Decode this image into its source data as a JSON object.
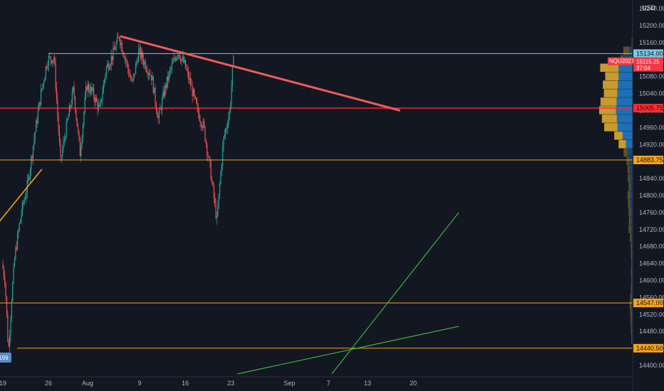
{
  "chart_data": {
    "type": "candlestick",
    "symbol_tag": "NQU2021",
    "currency": "USD",
    "countdown": "37:04",
    "y_axis": {
      "ticks": [
        14400,
        14440,
        14480,
        14520,
        14560,
        14600,
        14640,
        14680,
        14720,
        14760,
        14800,
        14840,
        14880,
        14920,
        14960,
        15000,
        15040,
        15080,
        15120,
        15160,
        15200,
        15240
      ],
      "ylim": [
        14386,
        15252
      ]
    },
    "x_axis": {
      "ticks": [
        {
          "label": "19",
          "day": 0
        },
        {
          "label": "26",
          "day": 7
        },
        {
          "label": "Aug",
          "day": 13
        },
        {
          "label": "9",
          "day": 21
        },
        {
          "label": "16",
          "day": 28
        },
        {
          "label": "23",
          "day": 35
        },
        {
          "label": "Sep",
          "day": 44
        },
        {
          "label": "7",
          "day": 50
        },
        {
          "label": "13",
          "day": 56
        },
        {
          "label": "20",
          "day": 63
        }
      ]
    },
    "price_path": [
      [
        0,
        14640
      ],
      [
        0.5,
        14600
      ],
      [
        1,
        14430
      ],
      [
        1.5,
        14560
      ],
      [
        2,
        14660
      ],
      [
        3,
        14760
      ],
      [
        4,
        14830
      ],
      [
        5,
        14940
      ],
      [
        6,
        15040
      ],
      [
        7,
        15120
      ],
      [
        8,
        15125
      ],
      [
        9,
        14880
      ],
      [
        10,
        14970
      ],
      [
        11,
        15050
      ],
      [
        12,
        14900
      ],
      [
        13,
        15060
      ],
      [
        14,
        15040
      ],
      [
        15,
        15000
      ],
      [
        16,
        15100
      ],
      [
        17,
        15130
      ],
      [
        18,
        15175
      ],
      [
        19,
        15120
      ],
      [
        20,
        15060
      ],
      [
        21,
        15140
      ],
      [
        22,
        15110
      ],
      [
        23,
        15080
      ],
      [
        24,
        14980
      ],
      [
        25,
        15050
      ],
      [
        26,
        15100
      ],
      [
        27,
        15140
      ],
      [
        28,
        15110
      ],
      [
        29,
        15060
      ],
      [
        30,
        15000
      ],
      [
        31,
        14960
      ],
      [
        32,
        14860
      ],
      [
        33,
        14740
      ],
      [
        34,
        14930
      ],
      [
        35,
        15000
      ],
      [
        35.5,
        15115.25
      ]
    ],
    "horizontal_levels": [
      {
        "label": "15134.00",
        "value": 15134.0,
        "color": "#7ec8e3"
      },
      {
        "label": "15005.75",
        "value": 15005.75,
        "color": "#ff2d2d"
      },
      {
        "label": "14883.75",
        "value": 14883.75,
        "color": "#f7a21b"
      },
      {
        "label": "14547.00",
        "value": 14547.0,
        "color": "#f7a21b"
      },
      {
        "label": "14440.50",
        "value": 14440.5,
        "color": "#f7a21b"
      }
    ],
    "last_price": {
      "label": "15115.25",
      "value": 15115.25,
      "color": "#f23645"
    },
    "trend_lines": [
      {
        "name": "resistance",
        "color": "#f05a5a",
        "from": [
          18,
          15175
        ],
        "to": [
          61,
          15000
        ]
      },
      {
        "name": "support-short",
        "color": "#f7a21b",
        "from": [
          -1,
          14730
        ],
        "to": [
          6,
          14862
        ]
      },
      {
        "name": "support-long-steep",
        "color": "#3fcf3f",
        "from": [
          50.5,
          14380
        ],
        "to": [
          70,
          14760
        ]
      },
      {
        "name": "support-long-shallow",
        "color": "#3fcf3f",
        "from": [
          36,
          14380
        ],
        "to": [
          70,
          14492
        ]
      }
    ],
    "low_marker": {
      "label": "199",
      "color": "#5b8ac9"
    },
    "volume_profile": [
      {
        "price": 15160,
        "up": 2,
        "down": 1
      },
      {
        "price": 15140,
        "up": 18,
        "down": 10
      },
      {
        "price": 15120,
        "up": 6,
        "down": 30
      },
      {
        "price": 15100,
        "up": 55,
        "down": 42
      },
      {
        "price": 15080,
        "up": 40,
        "down": 42
      },
      {
        "price": 15060,
        "up": 45,
        "down": 44
      },
      {
        "price": 15040,
        "up": 40,
        "down": 46
      },
      {
        "price": 15020,
        "up": 48,
        "down": 48
      },
      {
        "price": 15000,
        "up": 50,
        "down": 50
      },
      {
        "price": 14980,
        "up": 45,
        "down": 47
      },
      {
        "price": 14960,
        "up": 40,
        "down": 45
      },
      {
        "price": 14940,
        "up": 25,
        "down": 30
      },
      {
        "price": 14920,
        "up": 22,
        "down": 20
      },
      {
        "price": 14900,
        "up": 12,
        "down": 15
      },
      {
        "price": 14880,
        "up": 6,
        "down": 12
      },
      {
        "price": 14860,
        "up": 5,
        "down": 10
      },
      {
        "price": 14840,
        "up": 6,
        "down": 8
      },
      {
        "price": 14820,
        "up": 5,
        "down": 7
      },
      {
        "price": 14800,
        "up": 7,
        "down": 8
      },
      {
        "price": 14780,
        "up": 6,
        "down": 8
      },
      {
        "price": 14760,
        "up": 6,
        "down": 6
      },
      {
        "price": 14740,
        "up": 5,
        "down": 6
      },
      {
        "price": 14720,
        "up": 6,
        "down": 6
      },
      {
        "price": 14700,
        "up": 4,
        "down": 4
      },
      {
        "price": 14680,
        "up": 3,
        "down": 3
      },
      {
        "price": 14660,
        "up": 3,
        "down": 2
      },
      {
        "price": 14640,
        "up": 2,
        "down": 2
      },
      {
        "price": 14620,
        "up": 3,
        "down": 2
      },
      {
        "price": 14600,
        "up": 2,
        "down": 2
      },
      {
        "price": 14580,
        "up": 3,
        "down": 2
      },
      {
        "price": 14560,
        "up": 4,
        "down": 3
      },
      {
        "price": 14540,
        "up": 5,
        "down": 4
      },
      {
        "price": 14520,
        "up": 4,
        "down": 3
      },
      {
        "price": 14500,
        "up": 3,
        "down": 3
      },
      {
        "price": 14480,
        "up": 3,
        "down": 2
      },
      {
        "price": 14460,
        "up": 2,
        "down": 2
      }
    ]
  }
}
